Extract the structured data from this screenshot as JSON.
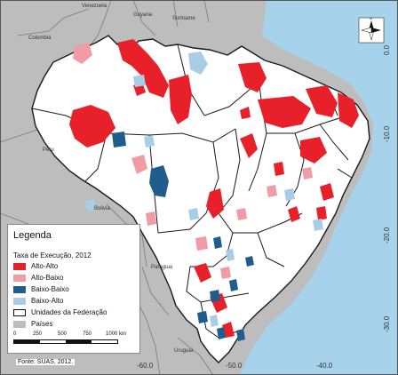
{
  "legend": {
    "title": "Legenda",
    "subtitle": "Taxa de Execução, 2012",
    "items": [
      {
        "label": "Alto-Alto",
        "color": "#e8202a"
      },
      {
        "label": "Alto-Baixo",
        "color": "#f19ca4"
      },
      {
        "label": "Baixo-Baixo",
        "color": "#1f5d8c"
      },
      {
        "label": "Baixo-Alto",
        "color": "#a9cde6"
      },
      {
        "label": "Unidades da Federação",
        "color": "#ffffff"
      },
      {
        "label": "Países",
        "color": "#bdbdbd"
      }
    ],
    "scale_labels": [
      "0",
      "250",
      "500",
      "750",
      "1000 km"
    ]
  },
  "source": "Fonte: SUAS, 2012.",
  "countries": [
    "Colombia",
    "Venezuela",
    "Guyana",
    "Suriname",
    "Peru",
    "Bolivia",
    "Paraguai",
    "Uruguai"
  ],
  "lat_labels": [
    "0.0",
    "-10.0",
    "-20.0",
    "-30.0"
  ],
  "lon_labels": [
    "-60.0",
    "-50.0",
    "-40.0"
  ],
  "colors": {
    "ocean": "#a6d2ec",
    "land": "#bdbdbd",
    "brazil": "#ffffff",
    "border": "#1a1a1a"
  }
}
